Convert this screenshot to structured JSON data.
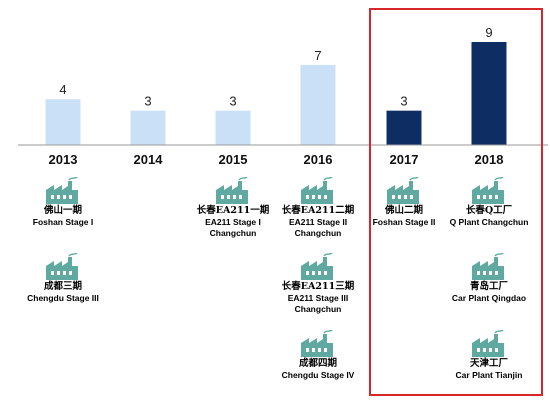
{
  "chart_data": {
    "type": "bar",
    "categories": [
      "2013",
      "2014",
      "2015",
      "2016",
      "2017",
      "2018"
    ],
    "values": [
      4,
      3,
      3,
      7,
      3,
      9
    ],
    "colors": [
      "#c9e0f7",
      "#c9e0f7",
      "#c9e0f7",
      "#c9e0f7",
      "#0d2d63",
      "#0d2d63"
    ],
    "ylim": [
      0,
      9
    ],
    "grid": false,
    "highlight": {
      "categories": [
        "2017",
        "2018"
      ],
      "color": "#d7262a"
    }
  },
  "plants": [
    {
      "year": "2013",
      "cn": "佛山一期",
      "en": [
        "Foshan Stage I"
      ]
    },
    {
      "year": "2013",
      "cn": "成都三期",
      "en": [
        "Chengdu Stage III"
      ]
    },
    {
      "year": "2015",
      "cn": "长春EA211一期",
      "en": [
        "EA211 Stage I",
        "Changchun"
      ]
    },
    {
      "year": "2016",
      "cn": "长春EA211二期",
      "en": [
        "EA211 Stage II",
        "Changchun"
      ]
    },
    {
      "year": "2016",
      "cn": "长春EA211三期",
      "en": [
        "EA211 Stage III",
        "Changchun"
      ]
    },
    {
      "year": "2016",
      "cn": "成都四期",
      "en": [
        "Chengdu Stage IV"
      ]
    },
    {
      "year": "2017",
      "cn": "佛山二期",
      "en": [
        "Foshan Stage II"
      ]
    },
    {
      "year": "2018",
      "cn": "长春Q工厂",
      "en": [
        "Q Plant Changchun"
      ]
    },
    {
      "year": "2018",
      "cn": "青岛工厂",
      "en": [
        "Car Plant Qingdao"
      ]
    },
    {
      "year": "2018",
      "cn": "天津工厂",
      "en": [
        "Car Plant Tianjin"
      ]
    }
  ],
  "icon": {
    "name": "factory-icon",
    "color": "#5fa9a0"
  }
}
